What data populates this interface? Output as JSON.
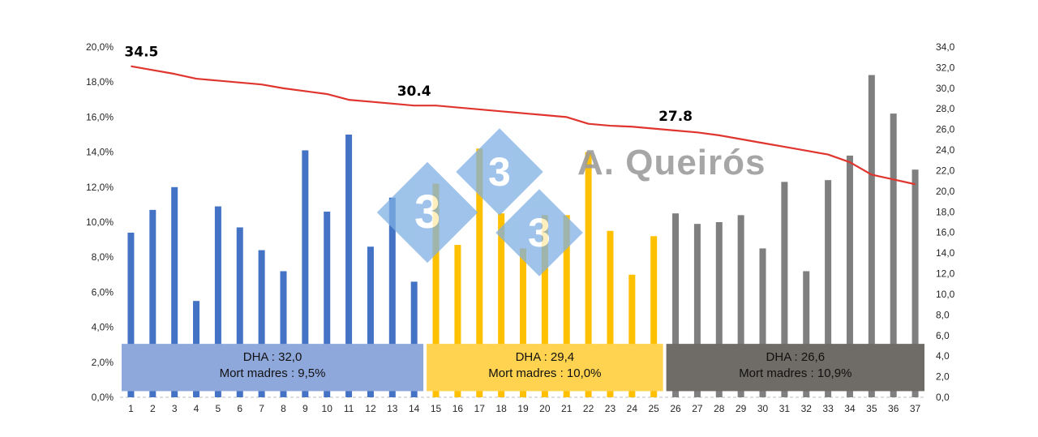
{
  "chart_data": {
    "type": "bar",
    "categories": [
      "1",
      "2",
      "3",
      "4",
      "5",
      "6",
      "7",
      "8",
      "9",
      "10",
      "11",
      "12",
      "13",
      "14",
      "15",
      "16",
      "17",
      "18",
      "19",
      "20",
      "21",
      "22",
      "23",
      "24",
      "25",
      "26",
      "27",
      "28",
      "29",
      "30",
      "31",
      "32",
      "33",
      "34",
      "35",
      "36",
      "37"
    ],
    "bar_values": [
      9.4,
      10.7,
      12.0,
      5.5,
      10.9,
      9.7,
      8.4,
      7.2,
      14.1,
      10.6,
      15.0,
      8.6,
      11.4,
      6.6,
      12.2,
      8.7,
      14.2,
      10.5,
      8.5,
      10.4,
      10.4,
      14.0,
      9.5,
      7.0,
      9.2,
      10.5,
      9.9,
      10.0,
      10.4,
      8.5,
      12.3,
      7.2,
      12.4,
      13.8,
      18.4,
      16.2,
      13.0
    ],
    "line_values": [
      34.5,
      34.1,
      33.7,
      33.2,
      33.0,
      32.8,
      32.6,
      32.2,
      31.9,
      31.6,
      31.0,
      30.8,
      30.6,
      30.4,
      30.4,
      30.2,
      30.0,
      29.8,
      29.6,
      29.4,
      29.2,
      28.5,
      28.3,
      28.2,
      28.0,
      27.8,
      27.6,
      27.3,
      26.9,
      26.5,
      26.1,
      25.7,
      25.3,
      24.5,
      23.2,
      22.7,
      22.2
    ],
    "line_color": "#e0352e",
    "left_axis_range": [
      0,
      20
    ],
    "right_axis_range": [
      0,
      34
    ],
    "left_axis_ticks": [
      "0,0%",
      "2,0%",
      "4,0%",
      "6,0%",
      "8,0%",
      "10,0%",
      "12,0%",
      "14,0%",
      "16,0%",
      "18,0%",
      "20,0%"
    ],
    "right_axis_ticks": [
      "0,0",
      "2,0",
      "4,0",
      "6,0",
      "8,0",
      "10,0",
      "12,0",
      "14,0",
      "16,0",
      "18,0",
      "20,0",
      "22,0",
      "24,0",
      "26,0",
      "28,0",
      "30,0",
      "32,0",
      "34,0"
    ],
    "groups": [
      {
        "dha_label": "DHA : 32,0",
        "mort_label": "Mort madres : 9,5%",
        "from": 1,
        "to": 14,
        "bar_color": "#4472c4",
        "box_color": "#8fa8dc"
      },
      {
        "dha_label": "DHA : 29,4",
        "mort_label": "Mort madres : 10,0%",
        "from": 15,
        "to": 25,
        "bar_color": "#ffc000",
        "box_color": "#ffd34f"
      },
      {
        "dha_label": "DHA : 26,6",
        "mort_label": "Mort madres : 10,9%",
        "from": 26,
        "to": 37,
        "bar_color": "#7f7f7f",
        "box_color": "#6f6b66"
      }
    ],
    "annotations": [
      {
        "at_category": "1",
        "text": "34.5"
      },
      {
        "at_category": "14",
        "text": "30.4"
      },
      {
        "at_category": "26",
        "text": "27.8"
      }
    ],
    "watermark": {
      "brand": "A. Queirós",
      "badge_digit": "3"
    }
  }
}
